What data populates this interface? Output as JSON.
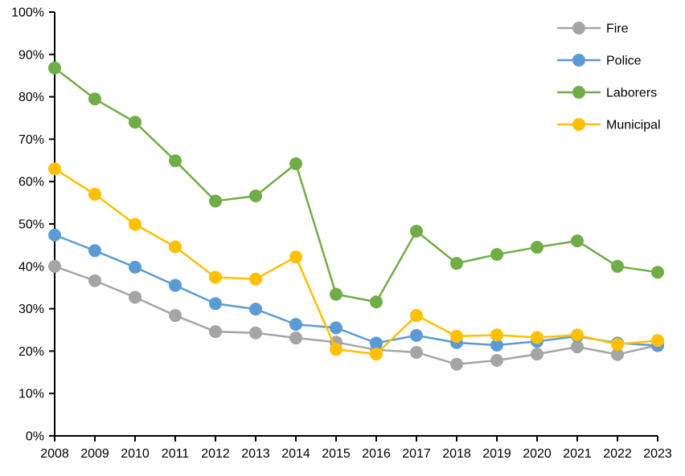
{
  "chart_data": {
    "type": "line",
    "title": "",
    "xlabel": "",
    "ylabel": "",
    "x": [
      2008,
      2009,
      2010,
      2011,
      2012,
      2013,
      2014,
      2015,
      2016,
      2017,
      2018,
      2019,
      2020,
      2021,
      2022,
      2023
    ],
    "x_tick_labels": [
      "2008",
      "2009",
      "2010",
      "2011",
      "2012",
      "2013",
      "2014",
      "2015",
      "2016",
      "2017",
      "2018",
      "2019",
      "2020",
      "2021",
      "2022",
      "2023"
    ],
    "series": [
      {
        "name": "Fire",
        "color": "#A5A5A5",
        "values": [
          40.0,
          36.6,
          32.7,
          28.4,
          24.6,
          24.3,
          23.1,
          22.1,
          20.3,
          19.7,
          16.9,
          17.8,
          19.3,
          21.0,
          19.2,
          21.4
        ]
      },
      {
        "name": "Police",
        "color": "#5B9BD5",
        "values": [
          47.4,
          43.7,
          39.8,
          35.5,
          31.2,
          29.9,
          26.3,
          25.5,
          21.9,
          23.7,
          22.0,
          21.4,
          22.3,
          23.5,
          21.9,
          21.3
        ]
      },
      {
        "name": "Laborers",
        "color": "#70AD47",
        "values": [
          86.8,
          79.5,
          74.0,
          64.9,
          55.4,
          56.6,
          64.2,
          33.4,
          31.6,
          48.3,
          40.7,
          42.8,
          44.5,
          46.0,
          40.0,
          38.6
        ]
      },
      {
        "name": "Municipal",
        "color": "#FFC000",
        "values": [
          63.0,
          57.0,
          49.9,
          44.6,
          37.4,
          37.0,
          42.2,
          20.4,
          19.3,
          28.4,
          23.5,
          23.8,
          23.2,
          23.8,
          21.6,
          22.5
        ]
      }
    ],
    "ylim": [
      0,
      100
    ],
    "ytick_step": 10,
    "ytick_labels": [
      "0%",
      "10%",
      "20%",
      "30%",
      "40%",
      "50%",
      "60%",
      "70%",
      "80%",
      "90%",
      "100%"
    ],
    "ytick_format": "percent",
    "grid": false,
    "legend_position": "top-right",
    "legend": [
      "Fire",
      "Police",
      "Laborers",
      "Municipal"
    ]
  },
  "style": {
    "background": "#FFFFFF",
    "axis_color": "#000000",
    "text_color": "#000000",
    "marker_radius": 8,
    "line_width": 2.5
  }
}
